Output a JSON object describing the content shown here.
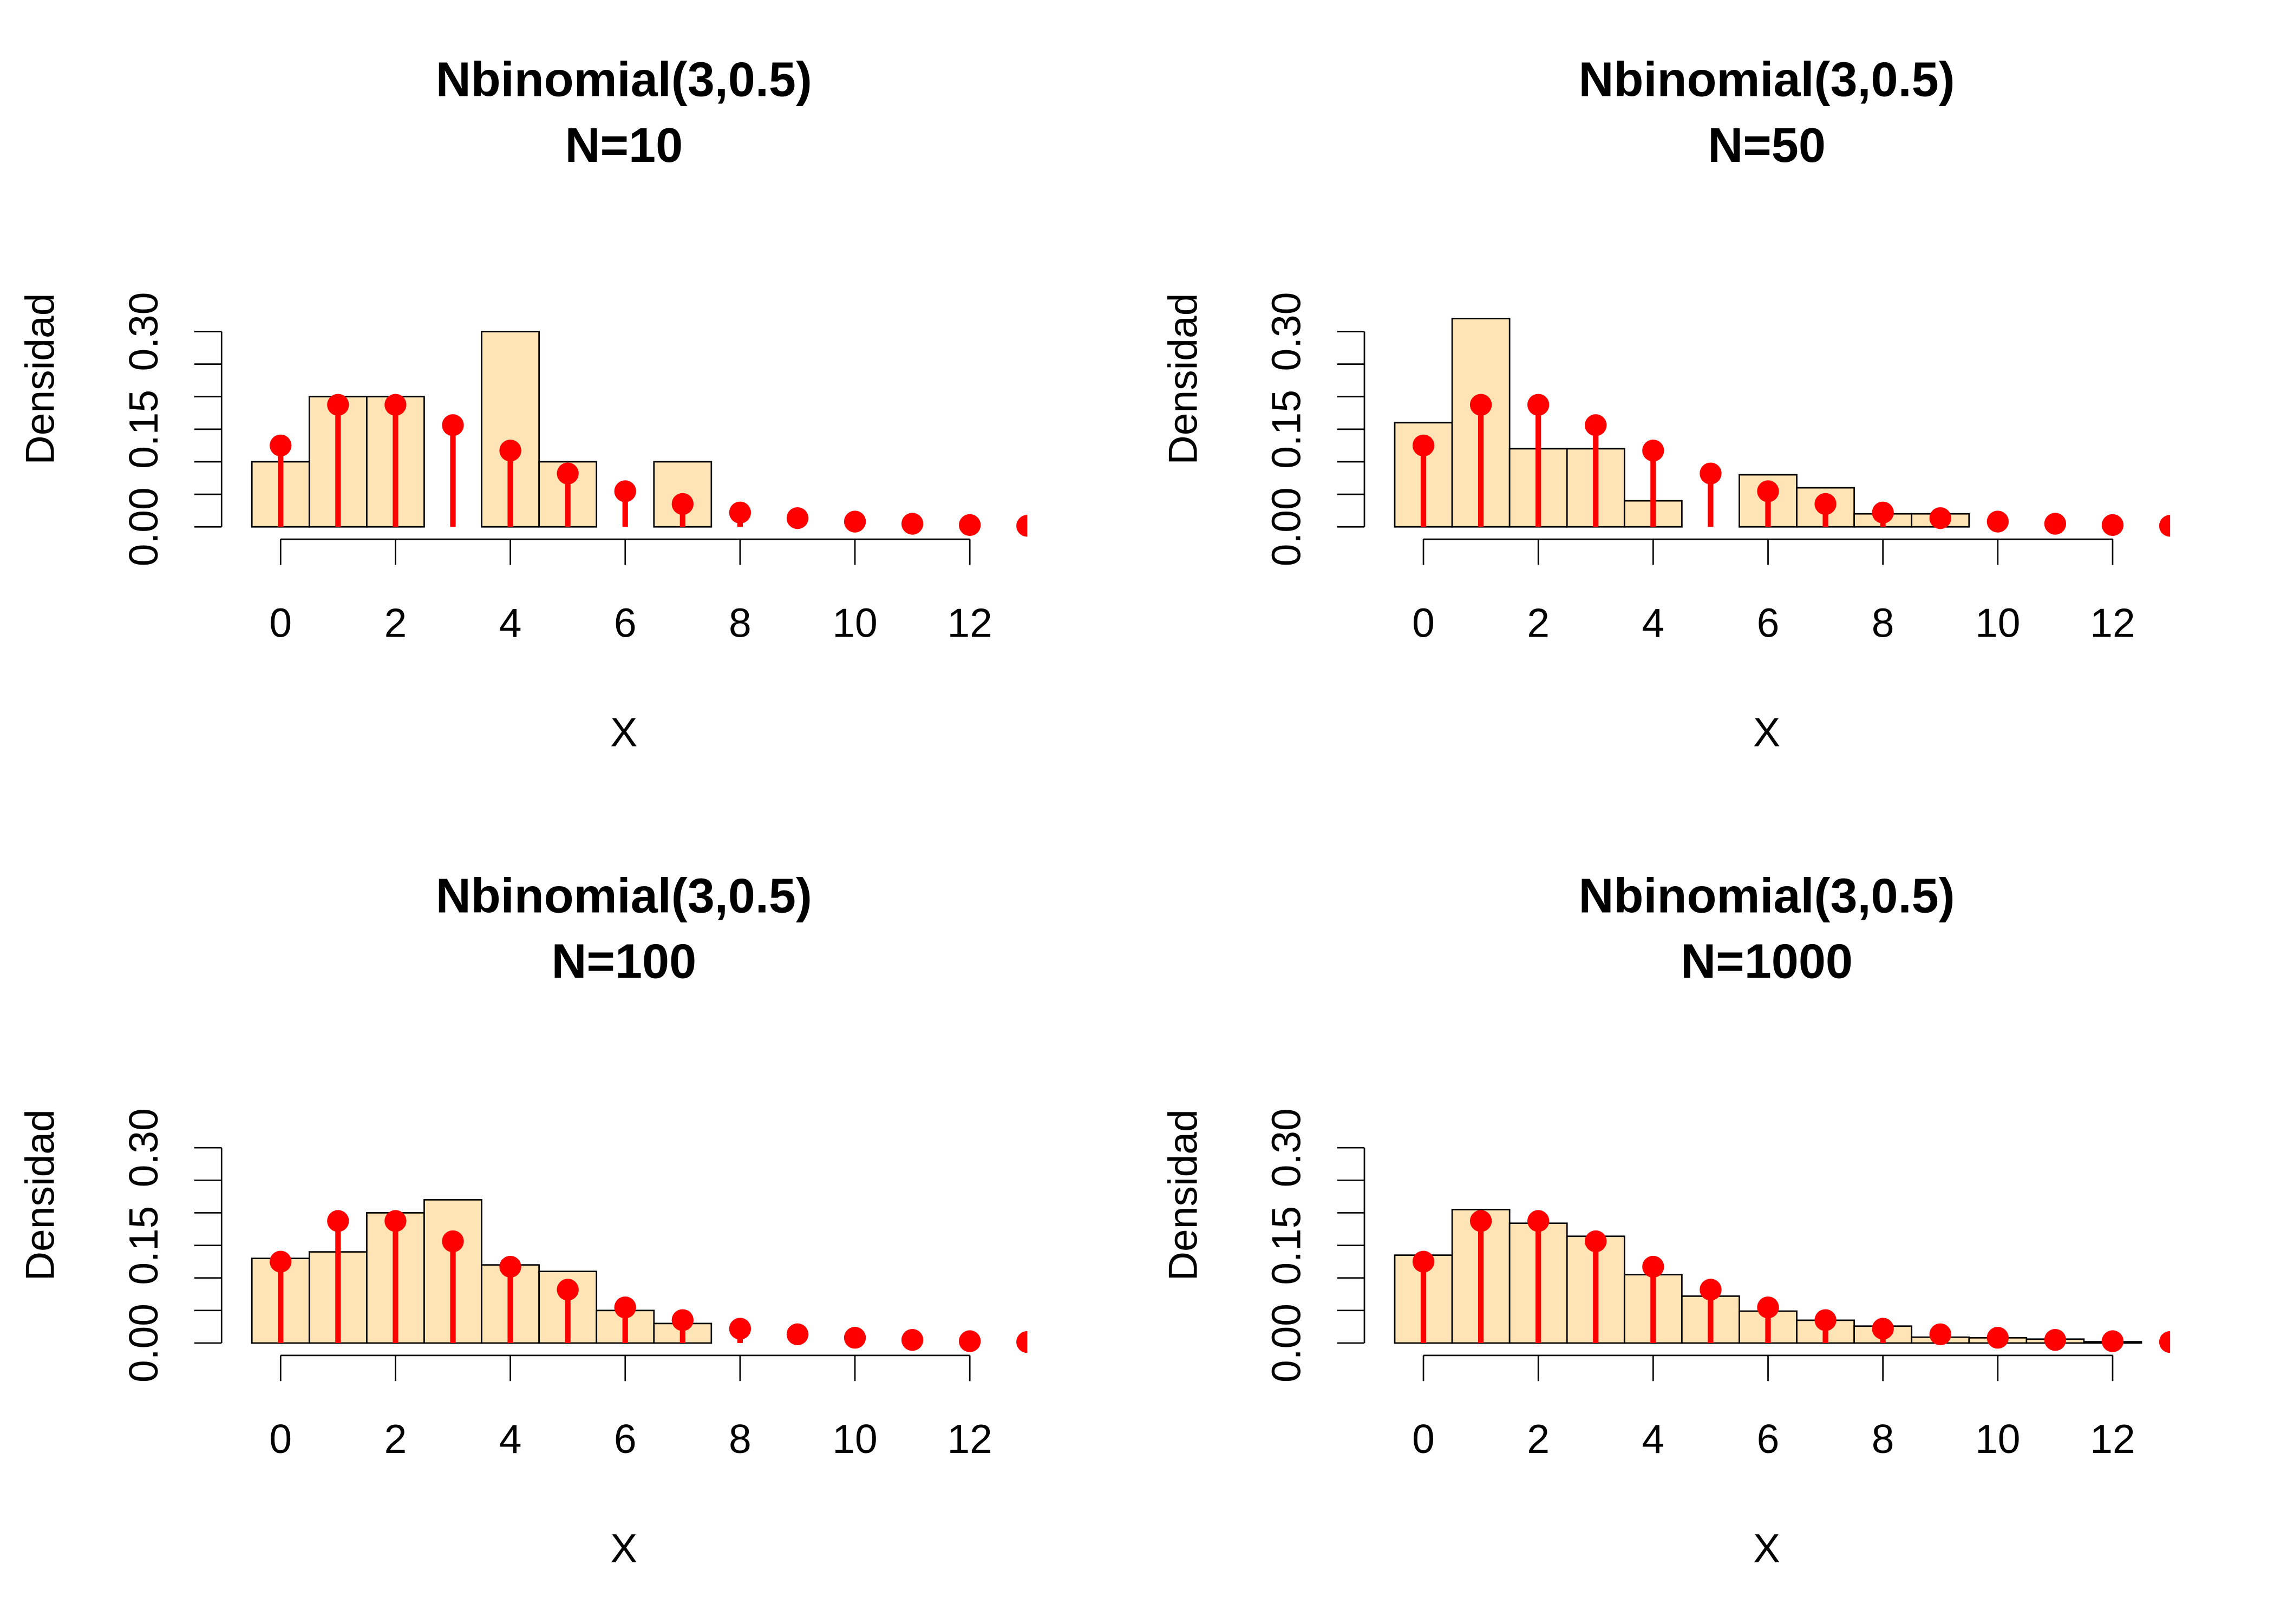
{
  "colors": {
    "bar_fill": "#FFE4B5",
    "bar_stroke": "#000000",
    "pmf": "#FF0000",
    "axis": "#000000"
  },
  "chart_data": [
    {
      "type": "bar",
      "title_lines": [
        "Nbinomial(3,0.5)",
        "N=10"
      ],
      "xlabel": "X",
      "ylabel": "Densidad",
      "xticks": [
        "0",
        "2",
        "4",
        "6",
        "8",
        "10",
        "12"
      ],
      "yticks": [
        "0.00",
        "0.15",
        "0.30"
      ],
      "ylim": [
        0,
        0.3
      ],
      "bin_edges": [
        -0.5,
        0.5,
        1.5,
        2.5,
        3.5,
        4.5,
        5.5,
        6.5,
        7.5,
        8.5,
        9.5,
        10.5,
        11.5,
        12.5
      ],
      "histogram_density": [
        0.1,
        0.2,
        0.2,
        0,
        0.3,
        0.1,
        0,
        0.1,
        0,
        0,
        0,
        0,
        0
      ],
      "pmf_x": [
        0,
        1,
        2,
        3,
        4,
        5,
        6,
        7,
        8,
        9,
        10,
        11,
        12,
        13
      ],
      "pmf_y": [
        0.125,
        0.1875,
        0.1875,
        0.15625,
        0.1172,
        0.082,
        0.0547,
        0.0352,
        0.022,
        0.0134,
        0.0081,
        0.0048,
        0.0028,
        0.0016
      ]
    },
    {
      "type": "bar",
      "title_lines": [
        "Nbinomial(3,0.5)",
        "N=50"
      ],
      "xlabel": "X",
      "ylabel": "Densidad",
      "xticks": [
        "0",
        "2",
        "4",
        "6",
        "8",
        "10",
        "12"
      ],
      "yticks": [
        "0.00",
        "0.15",
        "0.30"
      ],
      "ylim": [
        0,
        0.3
      ],
      "bin_edges": [
        -0.5,
        0.5,
        1.5,
        2.5,
        3.5,
        4.5,
        5.5,
        6.5,
        7.5,
        8.5,
        9.5,
        10.5,
        11.5,
        12.5
      ],
      "histogram_density": [
        0.16,
        0.32,
        0.12,
        0.12,
        0.04,
        0,
        0.08,
        0.06,
        0.02,
        0.02,
        0,
        0,
        0
      ],
      "pmf_x": [
        0,
        1,
        2,
        3,
        4,
        5,
        6,
        7,
        8,
        9,
        10,
        11,
        12,
        13
      ],
      "pmf_y": [
        0.125,
        0.1875,
        0.1875,
        0.15625,
        0.1172,
        0.082,
        0.0547,
        0.0352,
        0.022,
        0.0134,
        0.0081,
        0.0048,
        0.0028,
        0.0016
      ]
    },
    {
      "type": "bar",
      "title_lines": [
        "Nbinomial(3,0.5)",
        "N=100"
      ],
      "xlabel": "X",
      "ylabel": "Densidad",
      "xticks": [
        "0",
        "2",
        "4",
        "6",
        "8",
        "10",
        "12"
      ],
      "yticks": [
        "0.00",
        "0.15",
        "0.30"
      ],
      "ylim": [
        0,
        0.3
      ],
      "bin_edges": [
        -0.5,
        0.5,
        1.5,
        2.5,
        3.5,
        4.5,
        5.5,
        6.5,
        7.5,
        8.5,
        9.5,
        10.5,
        11.5,
        12.5
      ],
      "histogram_density": [
        0.13,
        0.14,
        0.2,
        0.22,
        0.12,
        0.11,
        0.05,
        0.03,
        0,
        0,
        0,
        0,
        0
      ],
      "pmf_x": [
        0,
        1,
        2,
        3,
        4,
        5,
        6,
        7,
        8,
        9,
        10,
        11,
        12,
        13
      ],
      "pmf_y": [
        0.125,
        0.1875,
        0.1875,
        0.15625,
        0.1172,
        0.082,
        0.0547,
        0.0352,
        0.022,
        0.0134,
        0.0081,
        0.0048,
        0.0028,
        0.0016
      ]
    },
    {
      "type": "bar",
      "title_lines": [
        "Nbinomial(3,0.5)",
        "N=1000"
      ],
      "xlabel": "X",
      "ylabel": "Densidad",
      "xticks": [
        "0",
        "2",
        "4",
        "6",
        "8",
        "10",
        "12"
      ],
      "yticks": [
        "0.00",
        "0.15",
        "0.30"
      ],
      "ylim": [
        0,
        0.3
      ],
      "bin_edges": [
        -0.5,
        0.5,
        1.5,
        2.5,
        3.5,
        4.5,
        5.5,
        6.5,
        7.5,
        8.5,
        9.5,
        10.5,
        11.5,
        12.5
      ],
      "histogram_density": [
        0.135,
        0.205,
        0.184,
        0.164,
        0.105,
        0.072,
        0.049,
        0.035,
        0.026,
        0.009,
        0.008,
        0.006,
        0.002
      ],
      "pmf_x": [
        0,
        1,
        2,
        3,
        4,
        5,
        6,
        7,
        8,
        9,
        10,
        11,
        12,
        13
      ],
      "pmf_y": [
        0.125,
        0.1875,
        0.1875,
        0.15625,
        0.1172,
        0.082,
        0.0547,
        0.0352,
        0.022,
        0.0134,
        0.0081,
        0.0048,
        0.0028,
        0.0016
      ]
    }
  ]
}
